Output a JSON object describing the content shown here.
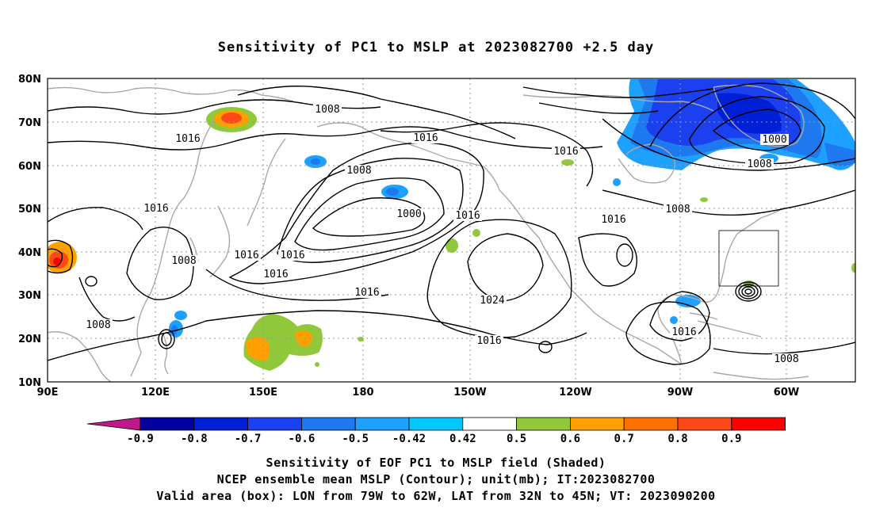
{
  "title": "Sensitivity of PC1 to MSLP at 2023082700 +2.5 day",
  "map": {
    "lon_labels": [
      "90E",
      "120E",
      "150E",
      "180",
      "150W",
      "120W",
      "90W",
      "60W"
    ],
    "lat_labels": [
      "80N",
      "70N",
      "60N",
      "50N",
      "40N",
      "30N",
      "20N",
      "10N"
    ],
    "contour_labels": [
      "1008",
      "1016",
      "1016",
      "1016",
      "1008",
      "1000",
      "1016",
      "1016",
      "1016",
      "1016",
      "1008",
      "1016",
      "1016",
      "1024",
      "1016",
      "1016",
      "1008",
      "1008",
      "1016",
      "1000",
      "1008",
      "1008"
    ],
    "valid_box": {
      "lon_from": "79W",
      "lon_to": "62W",
      "lat_from": "32N",
      "lat_to": "45N"
    }
  },
  "colorbar": {
    "labels": [
      "-0.9",
      "-0.8",
      "-0.7",
      "-0.6",
      "-0.5",
      "-0.42",
      "0.42",
      "0.5",
      "0.6",
      "0.7",
      "0.8",
      "0.9"
    ],
    "colors": [
      "#c0178f",
      "#0000a0",
      "#0020d8",
      "#1a40f0",
      "#1e78f0",
      "#1ea0ff",
      "#00c8ff",
      "#ffffff",
      "#90c83a",
      "#ffa000",
      "#ff7000",
      "#ff4818",
      "#ff0000",
      "#ff9cc8"
    ]
  },
  "caption": {
    "line1": "Sensitivity of EOF PC1 to MSLP field (Shaded)",
    "line2": "NCEP ensemble mean MSLP (Contour); unit(mb); IT:2023082700",
    "line3": "Valid area (box): LON from 79W to 62W, LAT from 32N to 45N; VT: 2023090200"
  }
}
